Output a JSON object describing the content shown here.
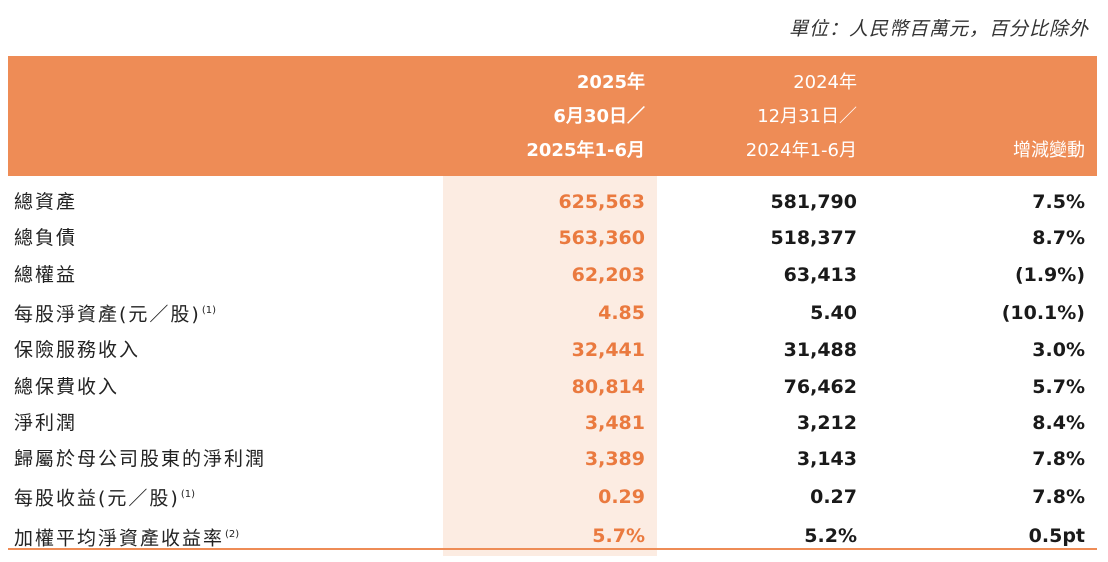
{
  "unit_note": "單位：人民幣百萬元，百分比除外",
  "header": {
    "col_2025": [
      "2025年",
      "6月30日／",
      "2025年1-6月"
    ],
    "col_2024": [
      "2024年",
      "12月31日／",
      "2024年1-6月"
    ],
    "col_change": "增減變動"
  },
  "rows": [
    {
      "label": "總資產",
      "note": "",
      "v2025": "625,563",
      "v2024": "581,790",
      "change": "7.5%"
    },
    {
      "label": "總負債",
      "note": "",
      "v2025": "563,360",
      "v2024": "518,377",
      "change": "8.7%"
    },
    {
      "label": "總權益",
      "note": "",
      "v2025": "62,203",
      "v2024": "63,413",
      "change": "(1.9%)"
    },
    {
      "label": "每股淨資產(元／股)",
      "note": "(1)",
      "v2025": "4.85",
      "v2024": "5.40",
      "change": "(10.1%)"
    },
    {
      "label": "保險服務收入",
      "note": "",
      "v2025": "32,441",
      "v2024": "31,488",
      "change": "3.0%"
    },
    {
      "label": "總保費收入",
      "note": "",
      "v2025": "80,814",
      "v2024": "76,462",
      "change": "5.7%"
    },
    {
      "label": "淨利潤",
      "note": "",
      "v2025": "3,481",
      "v2024": "3,212",
      "change": "8.4%"
    },
    {
      "label": "歸屬於母公司股東的淨利潤",
      "note": "",
      "v2025": "3,389",
      "v2024": "3,143",
      "change": "7.8%"
    },
    {
      "label": "每股收益(元／股)",
      "note": "(1)",
      "v2025": "0.29",
      "v2024": "0.27",
      "change": "7.8%"
    },
    {
      "label": "加權平均淨資產收益率",
      "note": "(2)",
      "v2025": "5.7%",
      "v2024": "5.2%",
      "change": "0.5pt"
    }
  ],
  "colors": {
    "header_bg": "#ee8c56",
    "highlight_col_bg": "#fcece2",
    "highlight_text": "#ea7a3f"
  }
}
